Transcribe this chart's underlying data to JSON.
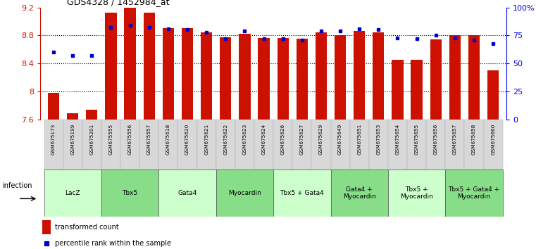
{
  "title": "GDS4328 / 1452984_at",
  "samples": [
    "GSM675173",
    "GSM675199",
    "GSM675201",
    "GSM675555",
    "GSM675556",
    "GSM675557",
    "GSM675618",
    "GSM675620",
    "GSM675621",
    "GSM675622",
    "GSM675623",
    "GSM675624",
    "GSM675626",
    "GSM675627",
    "GSM675629",
    "GSM675649",
    "GSM675651",
    "GSM675653",
    "GSM675654",
    "GSM675655",
    "GSM675656",
    "GSM675657",
    "GSM675658",
    "GSM675660"
  ],
  "bar_values": [
    7.98,
    7.69,
    7.74,
    9.13,
    9.2,
    9.13,
    8.9,
    8.9,
    8.84,
    8.77,
    8.82,
    8.76,
    8.76,
    8.75,
    8.84,
    8.8,
    8.86,
    8.84,
    8.45,
    8.45,
    8.74,
    8.8,
    8.8,
    8.3
  ],
  "dot_values": [
    60,
    57,
    57,
    82,
    84,
    82,
    81,
    80,
    78,
    72,
    79,
    72,
    72,
    71,
    79,
    79,
    81,
    80,
    73,
    72,
    75,
    73,
    71,
    68
  ],
  "ylim_left": [
    7.6,
    9.2
  ],
  "ylim_right": [
    0,
    100
  ],
  "yticks_left": [
    7.6,
    8.0,
    8.4,
    8.8,
    9.2
  ],
  "ytick_labels_left": [
    "7.6",
    "8",
    "8.4",
    "8.8",
    "9.2"
  ],
  "yticks_right": [
    0,
    25,
    50,
    75,
    100
  ],
  "ytick_labels_right": [
    "0",
    "25",
    "50",
    "75",
    "100%"
  ],
  "bar_color": "#cc1100",
  "dot_color": "#0000cc",
  "groups": [
    {
      "label": "LacZ",
      "start": 0,
      "end": 3,
      "color": "#ccffcc"
    },
    {
      "label": "Tbx5",
      "start": 3,
      "end": 6,
      "color": "#88dd88"
    },
    {
      "label": "Gata4",
      "start": 6,
      "end": 9,
      "color": "#ccffcc"
    },
    {
      "label": "Myocardin",
      "start": 9,
      "end": 12,
      "color": "#88dd88"
    },
    {
      "label": "Tbx5 + Gata4",
      "start": 12,
      "end": 15,
      "color": "#ccffcc"
    },
    {
      "label": "Gata4 +\nMyocardin",
      "start": 15,
      "end": 18,
      "color": "#88dd88"
    },
    {
      "label": "Tbx5 +\nMyocardin",
      "start": 18,
      "end": 21,
      "color": "#ccffcc"
    },
    {
      "label": "Tbx5 + Gata4 +\nMyocardin",
      "start": 21,
      "end": 24,
      "color": "#88dd88"
    }
  ],
  "infection_label": "infection",
  "legend_bar_label": "transformed count",
  "legend_dot_label": "percentile rank within the sample",
  "dotted_lines": [
    8.0,
    8.4,
    8.8
  ],
  "bar_width": 0.6,
  "group_colors_alt": [
    "#ccffcc",
    "#88dd88"
  ],
  "sample_bg_color": "#d8d8d8",
  "sample_border_color": "#aaaaaa"
}
